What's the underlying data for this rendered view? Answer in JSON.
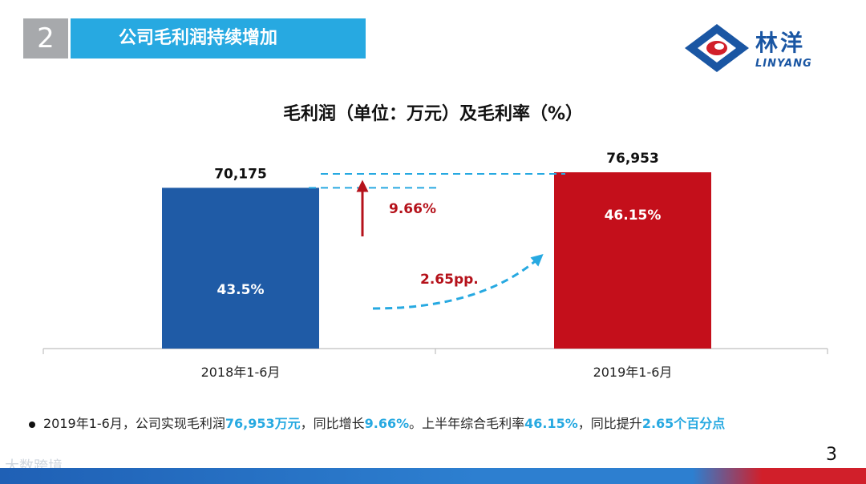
{
  "header": {
    "section_number": "2",
    "section_title": "公司毛利润持续增加"
  },
  "logo": {
    "name_cn": "林洋",
    "name_en": "LINYANG",
    "icon": "linyang-logo-icon"
  },
  "page_number": "3",
  "watermark": "大数跨境",
  "footnote": {
    "p1": "2019年1-6月，公司实现毛利润",
    "v1": "76,953万元",
    "p2": "，同比增长",
    "v2": "9.66%",
    "p3": "。上半年综合毛利率",
    "v3": "46.15%",
    "p4": "，同比提升",
    "v4": "2.65个百分点"
  },
  "colors": {
    "accent": "#27a9e1",
    "bar_2018": "#1f5ba6",
    "bar_2019": "#c40f1b",
    "growth": "#b5121b",
    "arrow_dashed": "#27a9e1"
  },
  "chart_data": {
    "type": "bar",
    "title": "毛利润（单位：万元）及毛利率（%）",
    "categories": [
      "2018年1-6月",
      "2019年1-6月"
    ],
    "values": [
      70175,
      76953
    ],
    "value_labels": [
      "70,175",
      "76,953"
    ],
    "margin_labels": [
      "43.5%",
      "46.15%"
    ],
    "margins": [
      43.5,
      46.15
    ],
    "annotations": {
      "profit_growth": "9.66%",
      "margin_change": "2.65pp."
    },
    "ylim": [
      0,
      80000
    ]
  }
}
